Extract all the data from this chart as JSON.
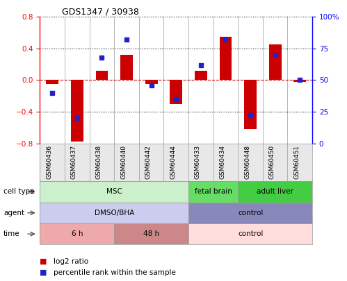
{
  "title": "GDS1347 / 30938",
  "samples": [
    "GSM60436",
    "GSM60437",
    "GSM60438",
    "GSM60440",
    "GSM60442",
    "GSM60444",
    "GSM60433",
    "GSM60434",
    "GSM60448",
    "GSM60450",
    "GSM60451"
  ],
  "log2_ratio": [
    -0.05,
    -0.78,
    0.12,
    0.32,
    -0.05,
    -0.3,
    0.12,
    0.55,
    -0.62,
    0.45,
    -0.02
  ],
  "percentile": [
    40,
    20,
    68,
    82,
    46,
    35,
    62,
    82,
    22,
    70,
    50
  ],
  "ylim_left": [
    -0.8,
    0.8
  ],
  "ylim_right": [
    0,
    100
  ],
  "yticks_left": [
    -0.8,
    -0.4,
    0.0,
    0.4,
    0.8
  ],
  "yticks_right": [
    0,
    25,
    50,
    75,
    100
  ],
  "bar_color": "#cc0000",
  "dot_color": "#2222cc",
  "zero_line_color": "#cc0000",
  "cell_type_labels": [
    {
      "label": "MSC",
      "start": 0,
      "end": 6,
      "color": "#ccf0cc"
    },
    {
      "label": "fetal brain",
      "start": 6,
      "end": 8,
      "color": "#66dd66"
    },
    {
      "label": "adult liver",
      "start": 8,
      "end": 11,
      "color": "#44cc44"
    }
  ],
  "agent_labels": [
    {
      "label": "DMSO/BHA",
      "start": 0,
      "end": 6,
      "color": "#ccccee"
    },
    {
      "label": "control",
      "start": 6,
      "end": 11,
      "color": "#8888bb"
    }
  ],
  "time_labels": [
    {
      "label": "6 h",
      "start": 0,
      "end": 3,
      "color": "#eeaaaa"
    },
    {
      "label": "48 h",
      "start": 3,
      "end": 6,
      "color": "#cc8888"
    },
    {
      "label": "control",
      "start": 6,
      "end": 11,
      "color": "#ffdddd"
    }
  ],
  "row_labels": [
    "cell type",
    "agent",
    "time"
  ],
  "legend": [
    {
      "color": "#cc0000",
      "label": "log2 ratio"
    },
    {
      "color": "#2222cc",
      "label": "percentile rank within the sample"
    }
  ]
}
